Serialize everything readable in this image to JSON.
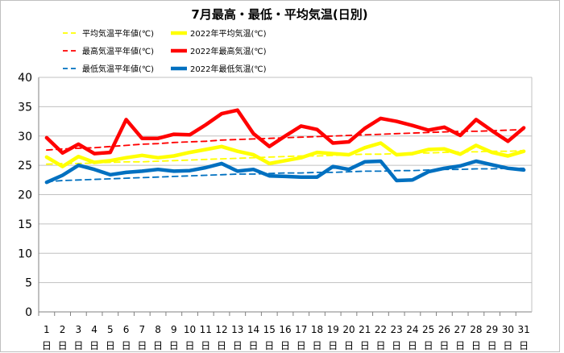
{
  "chart_data": {
    "type": "line",
    "title": "7月最高・最低・平均気温(日別)",
    "x": [
      1,
      2,
      3,
      4,
      5,
      6,
      7,
      8,
      9,
      10,
      11,
      12,
      13,
      14,
      15,
      16,
      17,
      18,
      19,
      20,
      21,
      22,
      23,
      24,
      25,
      26,
      27,
      28,
      29,
      30,
      31
    ],
    "x_suffix": "日",
    "ylim": [
      0,
      40
    ],
    "yticks": [
      0,
      5,
      10,
      15,
      20,
      25,
      30,
      35,
      40
    ],
    "grid": true,
    "legend_position": "top-left",
    "series": [
      {
        "name": "平均気温平年値(℃)",
        "color": "#FFFF00",
        "dash": true,
        "values": [
          25.2,
          25.3,
          25.3,
          25.4,
          25.5,
          25.6,
          25.6,
          25.7,
          25.8,
          25.9,
          26.0,
          26.1,
          26.2,
          26.3,
          26.4,
          26.5,
          26.6,
          26.6,
          26.7,
          26.8,
          26.9,
          26.9,
          27.0,
          27.1,
          27.1,
          27.2,
          27.3,
          27.3,
          27.4,
          27.4,
          27.5
        ]
      },
      {
        "name": "2022年平均気温(℃)",
        "color": "#FFFF00",
        "dash": false,
        "values": [
          26.4,
          24.8,
          26.5,
          25.5,
          25.8,
          26.3,
          26.7,
          26.3,
          26.6,
          27.2,
          27.7,
          28.2,
          27.4,
          26.8,
          25.3,
          25.8,
          26.3,
          27.2,
          27.0,
          26.8,
          28.0,
          28.8,
          26.8,
          27.0,
          27.7,
          27.8,
          26.9,
          28.4,
          27.2,
          26.6,
          27.4
        ]
      },
      {
        "name": "最高気温平年値(℃)",
        "color": "#FF0000",
        "dash": true,
        "values": [
          27.6,
          27.8,
          27.9,
          28.0,
          28.2,
          28.4,
          28.6,
          28.7,
          28.9,
          29.0,
          29.1,
          29.3,
          29.4,
          29.5,
          29.6,
          29.7,
          29.8,
          29.9,
          30.0,
          30.1,
          30.2,
          30.3,
          30.4,
          30.5,
          30.6,
          30.7,
          30.8,
          30.8,
          30.9,
          31.0,
          31.1
        ]
      },
      {
        "name": "2022年最高気温(℃)",
        "color": "#FF0000",
        "dash": false,
        "values": [
          29.7,
          27.1,
          28.6,
          27.0,
          27.2,
          32.8,
          29.6,
          29.6,
          30.3,
          30.2,
          31.9,
          33.8,
          34.4,
          30.4,
          28.2,
          30.0,
          31.7,
          31.1,
          28.8,
          29.0,
          31.3,
          33.0,
          32.5,
          31.8,
          31.0,
          31.5,
          30.1,
          32.8,
          30.9,
          29.1,
          31.4
        ]
      },
      {
        "name": "最低気温平年値(℃)",
        "color": "#0070C0",
        "dash": true,
        "values": [
          22.2,
          22.4,
          22.5,
          22.6,
          22.7,
          22.8,
          22.9,
          23.0,
          23.1,
          23.2,
          23.3,
          23.4,
          23.5,
          23.5,
          23.6,
          23.7,
          23.7,
          23.8,
          23.8,
          23.9,
          24.0,
          24.0,
          24.1,
          24.1,
          24.2,
          24.3,
          24.3,
          24.4,
          24.4,
          24.5,
          24.5
        ]
      },
      {
        "name": "2022年最低気温(℃)",
        "color": "#0070C0",
        "dash": false,
        "values": [
          22.1,
          23.3,
          25.0,
          24.3,
          23.4,
          23.8,
          24.0,
          24.3,
          24.0,
          24.1,
          24.6,
          25.3,
          24.0,
          24.3,
          23.2,
          23.1,
          23.0,
          23.0,
          24.8,
          24.3,
          25.6,
          25.7,
          22.4,
          22.5,
          23.9,
          24.5,
          24.9,
          25.7,
          25.1,
          24.5,
          24.2
        ]
      }
    ]
  }
}
